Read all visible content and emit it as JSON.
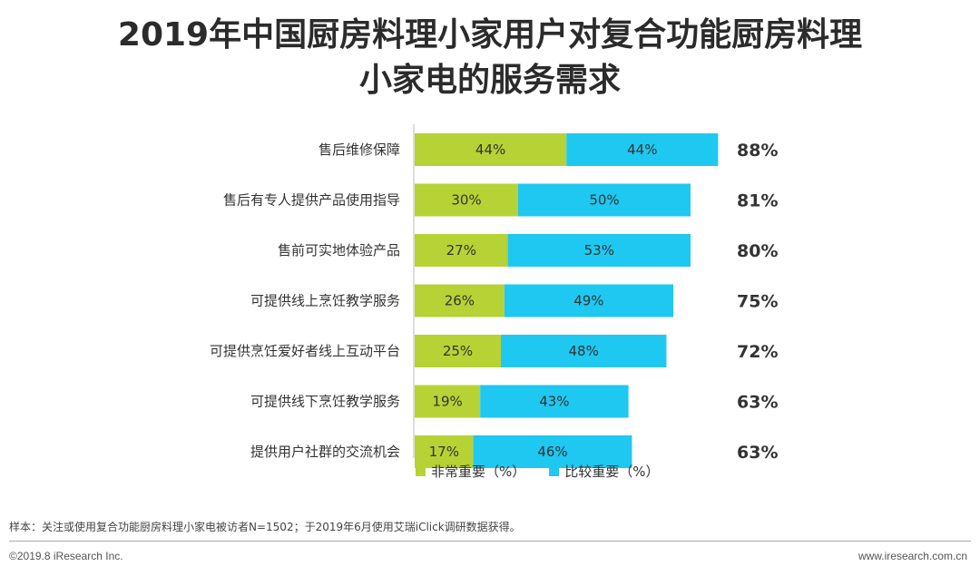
{
  "title_line1": "2019年中国厨房料理小家用户对复合功能厨房料理",
  "title_line2": "小家电的服务需求",
  "colors": {
    "series1": "#b6d234",
    "series2": "#1ec8f0"
  },
  "legend": {
    "series1": "非常重要（%）",
    "series2": "比较重要（%）"
  },
  "note": "样本：关注或使用复合功能厨房料理小家电被访者N=1502；于2019年6月使用艾瑞iClick调研数据获得。",
  "footer": {
    "left": "©2019.8 iResearch Inc.",
    "right": "www.iresearch.com.cn"
  },
  "chart_data": {
    "type": "bar",
    "orientation": "horizontal",
    "stacked": true,
    "categories": [
      "售后维修保障",
      "售后有专人提供产品使用指导",
      "售前可实地体验产品",
      "可提供线上烹饪教学服务",
      "可提供烹饪爱好者线上互动平台",
      "可提供线下烹饪教学服务",
      "提供用户社群的交流机会"
    ],
    "series": [
      {
        "name": "非常重要（%）",
        "values": [
          44,
          30,
          27,
          26,
          25,
          19,
          17
        ]
      },
      {
        "name": "比较重要（%）",
        "values": [
          44,
          50,
          53,
          49,
          48,
          43,
          46
        ]
      }
    ],
    "totals": [
      88,
      81,
      80,
      75,
      72,
      63,
      63
    ],
    "data_label_suffix": "%",
    "total_label_suffix": "%",
    "legend_position": "bottom"
  }
}
